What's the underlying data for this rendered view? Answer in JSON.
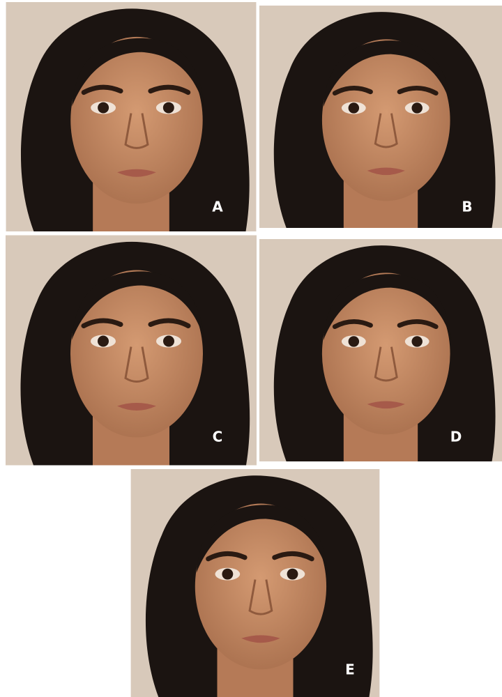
{
  "panels": [
    {
      "label": "A"
    },
    {
      "label": "B"
    },
    {
      "label": "C"
    },
    {
      "label": "D"
    },
    {
      "label": "E"
    }
  ]
}
